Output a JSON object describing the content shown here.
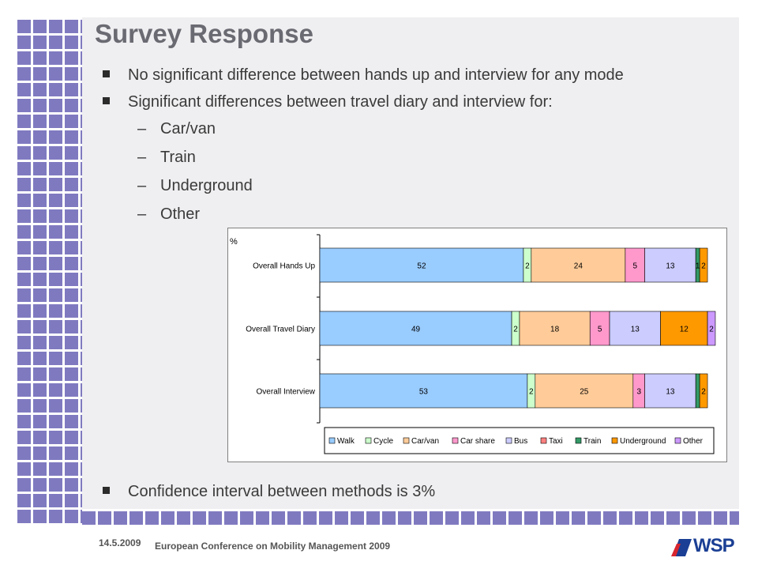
{
  "slide": {
    "title": "Survey Response",
    "bullets": [
      {
        "level": 1,
        "text": "No significant difference between hands up and interview for any mode"
      },
      {
        "level": 1,
        "text": "Significant differences between travel diary and interview for:"
      },
      {
        "level": 2,
        "text": "Car/van"
      },
      {
        "level": 2,
        "text": "Train"
      },
      {
        "level": 2,
        "text": "Underground"
      },
      {
        "level": 2,
        "text": "Other"
      }
    ],
    "last_bullet": "Confidence interval between methods is 3%"
  },
  "footer": {
    "date": "14.5.2009",
    "conference": "European Conference on Mobility Management 2009",
    "logo_text": "WSP"
  },
  "colors": {
    "grid": "#7f7ac0",
    "panel": "#efeff1",
    "logo_blue": "#1b3f94",
    "logo_red": "#d8262e"
  },
  "chart_data": {
    "type": "bar",
    "orientation": "horizontal",
    "stacked": true,
    "ylabel": "%",
    "categories": [
      "Overall Hands Up",
      "Overall Travel Diary",
      "Overall Interview"
    ],
    "xlim": [
      0,
      100
    ],
    "grid": false,
    "legend_position": "bottom",
    "series": [
      {
        "name": "Walk",
        "color": "#99ccff",
        "values": [
          52,
          49,
          53
        ],
        "labels": [
          "52",
          "49",
          "53"
        ]
      },
      {
        "name": "Cycle",
        "color": "#ccffcc",
        "values": [
          2,
          2,
          2
        ],
        "labels": [
          "2",
          "2",
          "2"
        ]
      },
      {
        "name": "Car/van",
        "color": "#ffcc99",
        "values": [
          24,
          18,
          25
        ],
        "labels": [
          "24",
          "18",
          "25"
        ]
      },
      {
        "name": "Car share",
        "color": "#ff99cc",
        "values": [
          5,
          5,
          3
        ],
        "labels": [
          "5",
          "5",
          "3"
        ]
      },
      {
        "name": "Bus",
        "color": "#ccccff",
        "values": [
          13,
          13,
          13
        ],
        "labels": [
          "13",
          "13",
          "13"
        ]
      },
      {
        "name": "Taxi",
        "color": "#ff8080",
        "values": [
          0,
          0,
          0
        ],
        "labels": [
          "",
          "",
          ""
        ]
      },
      {
        "name": "Train",
        "color": "#339966",
        "values": [
          1,
          0,
          1
        ],
        "labels": [
          "1",
          "",
          ""
        ]
      },
      {
        "name": "Underground",
        "color": "#ff9900",
        "values": [
          2,
          12,
          2
        ],
        "labels": [
          "2",
          "12",
          "2"
        ]
      },
      {
        "name": "Other",
        "color": "#cc99ff",
        "values": [
          0,
          2,
          0
        ],
        "labels": [
          "",
          "2",
          ""
        ]
      }
    ]
  }
}
